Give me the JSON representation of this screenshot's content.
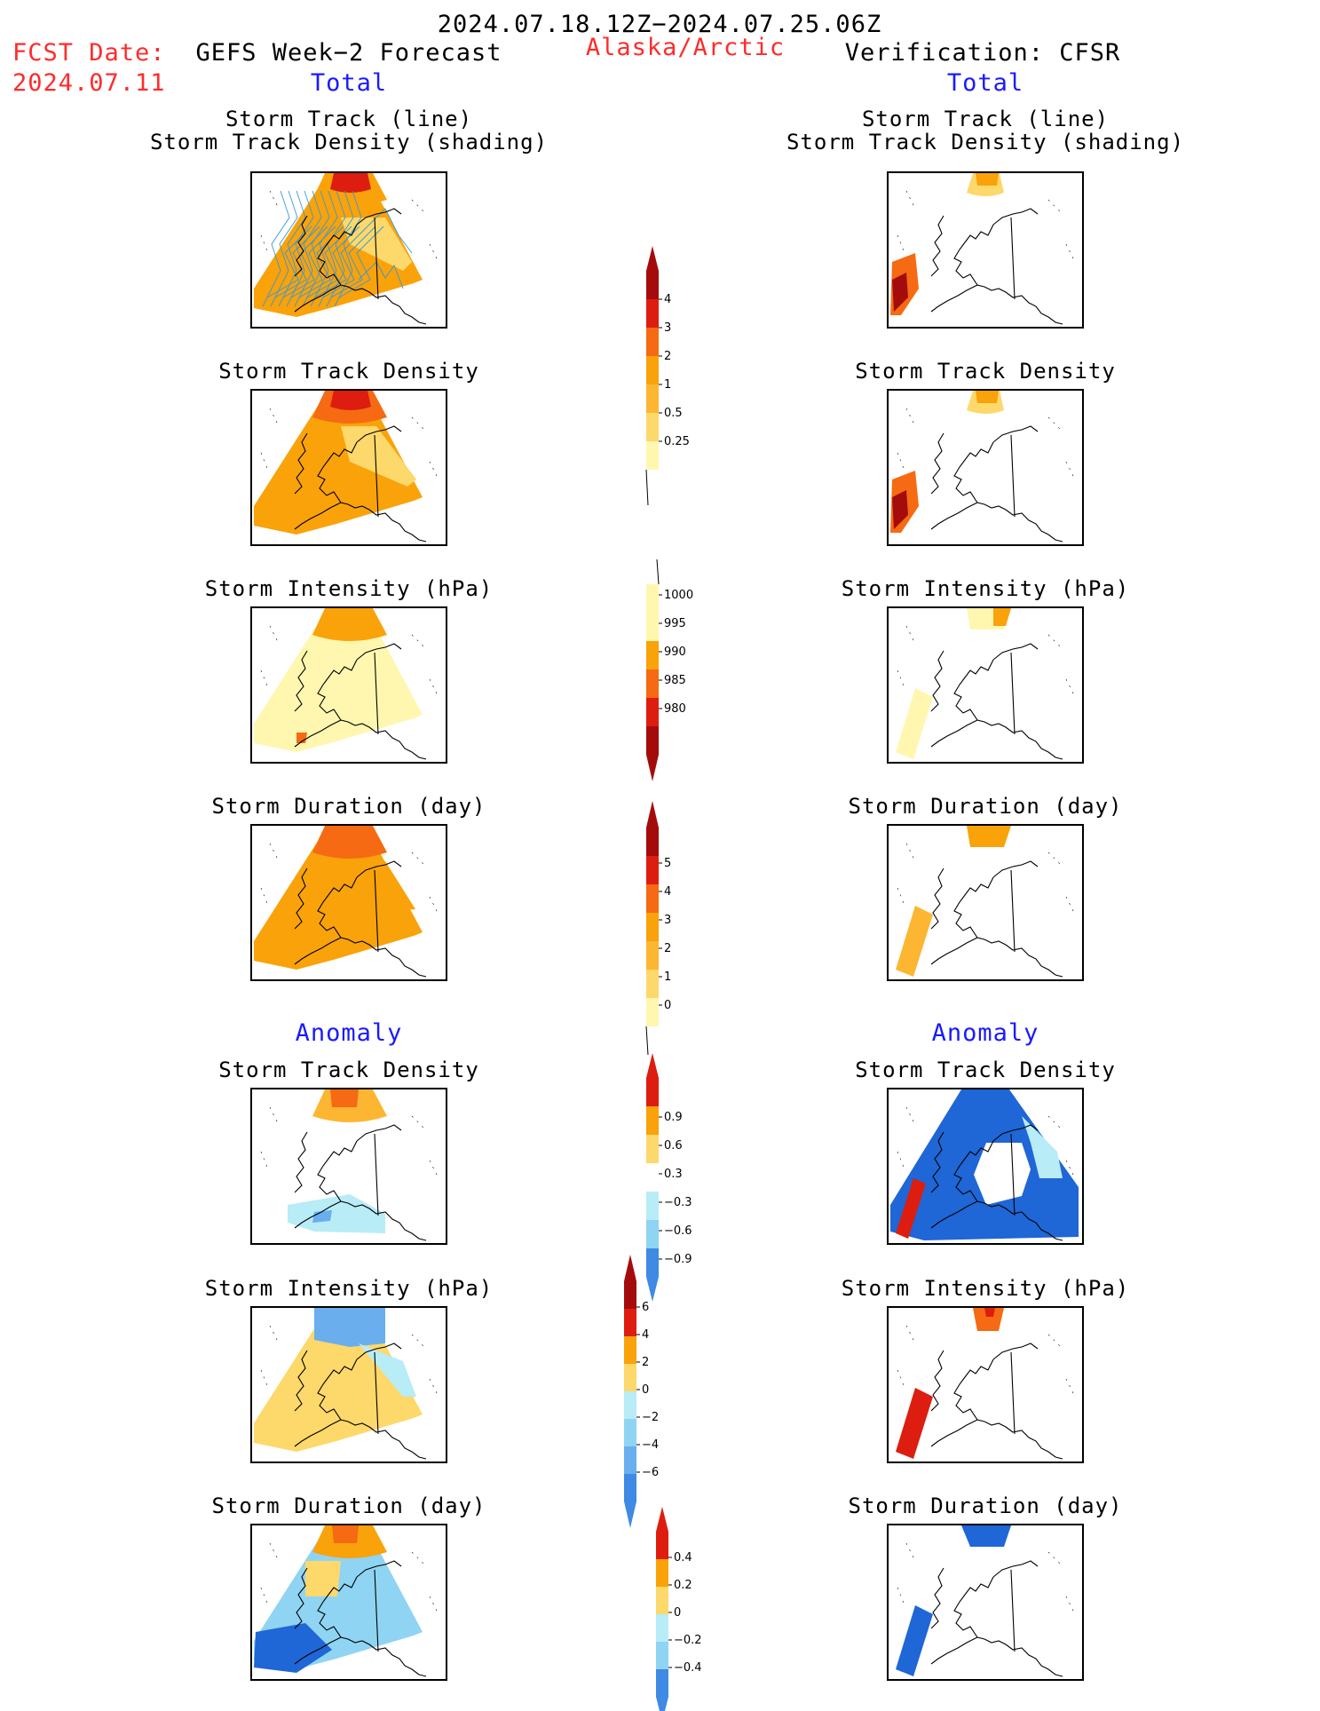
{
  "header": {
    "period": "2024.07.18.12Z−2024.07.25.06Z",
    "fcst_label": "FCST Date:",
    "fcst_date": "2024.07.11",
    "left_title": "GEFS Week−2 Forecast",
    "region": "Alaska/Arctic",
    "right_title": "Verification: CFSR",
    "total_label": "Total",
    "anomaly_label": "Anomaly"
  },
  "panel_titles": {
    "track_line": "Storm Track (line)",
    "track_shading": "Storm Track Density (shading)",
    "density": "Storm Track Density",
    "intensity": "Storm Intensity (hPa)",
    "duration": "Storm Duration (day)"
  },
  "colorbars": {
    "density_total": [
      "0.25",
      "0.5",
      "1",
      "2",
      "3",
      "4"
    ],
    "intensity_total": [
      "1000",
      "995",
      "990",
      "985",
      "980"
    ],
    "duration_total": [
      "0",
      "1",
      "2",
      "3",
      "4",
      "5"
    ],
    "density_anom": [
      "−0.9",
      "−0.6",
      "−0.3",
      "0.3",
      "0.6",
      "0.9"
    ],
    "intensity_anom": [
      "−6",
      "−4",
      "−2",
      "0",
      "2",
      "4",
      "6"
    ],
    "duration_anom": [
      "−0.4",
      "−0.2",
      "0",
      "0.2",
      "0.4"
    ]
  },
  "colors": {
    "map_lines": "#000000",
    "track_lines": "#3399dd",
    "warm": [
      "#fff7b0",
      "#fdd86a",
      "#fdb632",
      "#f9a20a",
      "#f56a12",
      "#dd1d10",
      "#a40c0c"
    ],
    "cool": [
      "#b8ecf7",
      "#8fd4f2",
      "#6aaeee",
      "#3e8ae4",
      "#1f66d6"
    ]
  }
}
